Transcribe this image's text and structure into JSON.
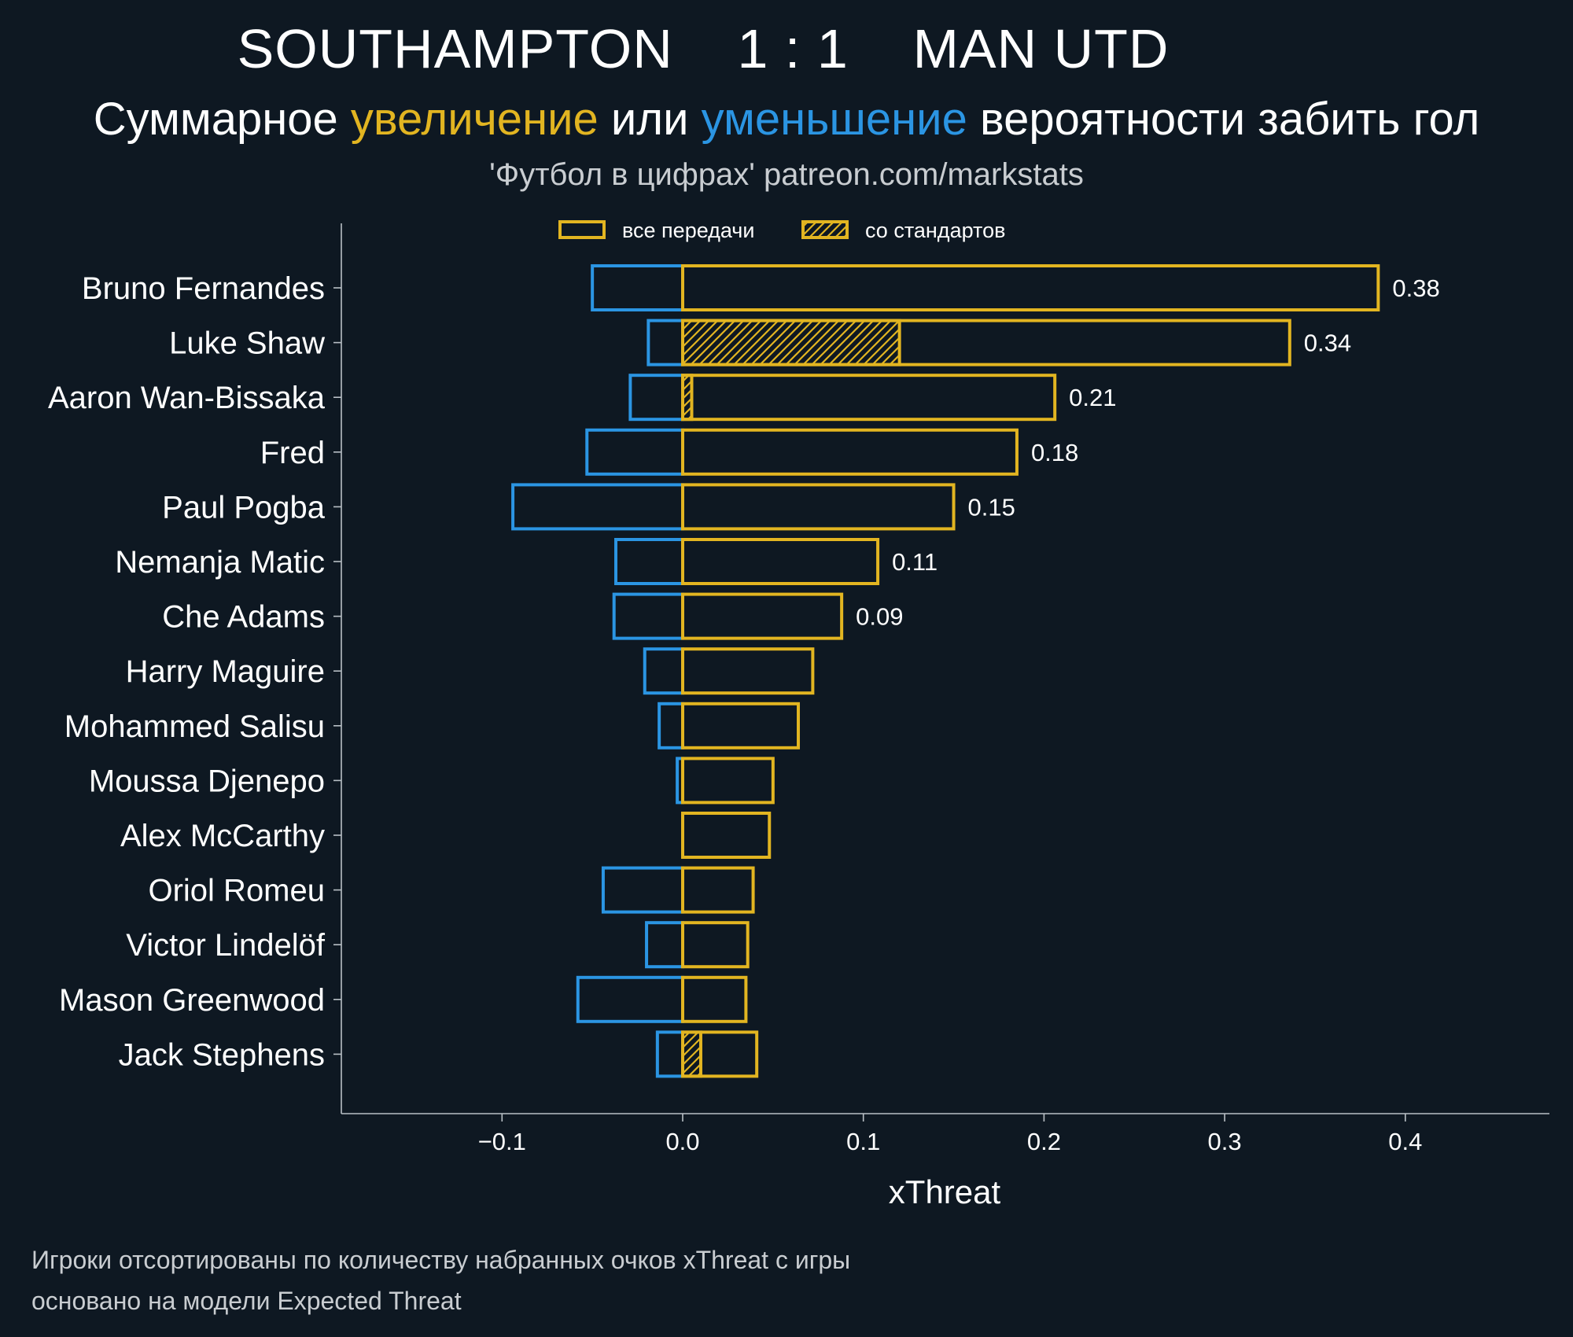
{
  "header": {
    "home_team": "SOUTHAMPTON",
    "score": "1 : 1",
    "away_team": "MAN UTD",
    "subtitle_part1": "Суммарное ",
    "subtitle_increase": "увеличение",
    "subtitle_part2": " или ",
    "subtitle_decrease": "уменьшение",
    "subtitle_part3": " вероятности забить гол",
    "source": "'Футбол в цифрах' patreon.com/markstats"
  },
  "colors": {
    "background": "#0e1822",
    "increase": "#e2b521",
    "decrease": "#2b95e3",
    "axis": "#b9c0c6"
  },
  "footnotes": {
    "line1": "Игроки отсортированы по количеству набранных очков xThreat с игры",
    "line2": "основано на модели Expected Threat"
  },
  "chart_data": {
    "type": "bar",
    "orientation": "horizontal",
    "xlabel": "xThreat",
    "xlim": [
      -0.19,
      0.48
    ],
    "xticks": [
      -0.1,
      0.0,
      0.1,
      0.2,
      0.3,
      0.4
    ],
    "xtick_labels": [
      "−0.1",
      "0.0",
      "0.1",
      "0.2",
      "0.3",
      "0.4"
    ],
    "legend_position": "top-center",
    "legend": [
      {
        "label": "все передачи",
        "style": "outline"
      },
      {
        "label": "со стандартов",
        "style": "hatched"
      }
    ],
    "categories": [
      "Bruno Fernandes",
      "Luke Shaw",
      "Aaron Wan-Bissaka",
      "Fred",
      "Paul Pogba",
      "Nemanja Matic",
      "Che Adams",
      "Harry Maguire",
      "Mohammed Salisu",
      "Moussa Djenepo",
      "Alex McCarthy",
      "Oriol Romeu",
      "Victor Lindelöf",
      "Mason Greenwood",
      "Jack Stephens"
    ],
    "series": [
      {
        "name": "все передачи",
        "values": [
          0.385,
          0.336,
          0.206,
          0.185,
          0.15,
          0.108,
          0.088,
          0.072,
          0.064,
          0.05,
          0.048,
          0.039,
          0.036,
          0.035,
          0.041
        ]
      },
      {
        "name": "со стандартов",
        "values": [
          0,
          0.12,
          0.005,
          0,
          0,
          0,
          0,
          0,
          0,
          0,
          0,
          0,
          0,
          0,
          0.01
        ]
      },
      {
        "name": "decrease",
        "values": [
          -0.05,
          -0.019,
          -0.029,
          -0.053,
          -0.094,
          -0.037,
          -0.038,
          -0.021,
          -0.013,
          -0.003,
          0,
          -0.044,
          -0.02,
          -0.058,
          -0.014
        ]
      }
    ],
    "data_labels": [
      "0.38",
      "0.34",
      "0.21",
      "0.18",
      "0.15",
      "0.11",
      "0.09",
      "",
      "",
      "",
      "",
      "",
      "",
      "",
      ""
    ]
  }
}
